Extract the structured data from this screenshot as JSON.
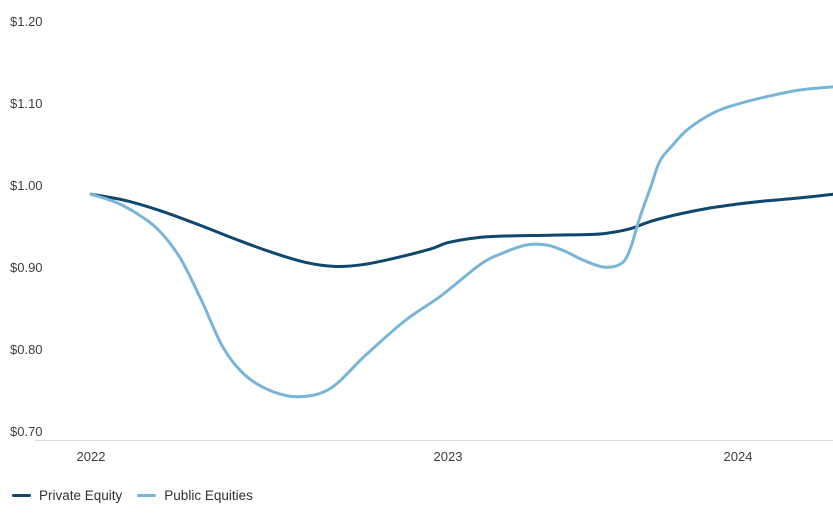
{
  "chart_data": {
    "type": "line",
    "title": "",
    "xlabel": "",
    "ylabel": "",
    "currency_format": "dollars",
    "grid": "off",
    "legend_position": "bottom-left",
    "xlim": [
      2022.0,
      2024.33
    ],
    "ylim": [
      0.7,
      1.2
    ],
    "x_ticks": [
      {
        "label": "2022",
        "year": 2022
      },
      {
        "label": "2023",
        "year": 2023
      },
      {
        "label": "2024",
        "year": 2024
      }
    ],
    "y_ticks": [
      {
        "label": "$1.20",
        "value": 1.2
      },
      {
        "label": "$1.10",
        "value": 1.1
      },
      {
        "label": "$1.00",
        "value": 1.0
      },
      {
        "label": "$0.90",
        "value": 0.9
      },
      {
        "label": "$0.80",
        "value": 0.8
      },
      {
        "label": "$0.70",
        "value": 0.7
      }
    ],
    "series": [
      {
        "name": "Private Equity",
        "color": "#0e486e",
        "points": [
          [
            2022.0,
            0.99
          ],
          [
            2022.1,
            0.982
          ],
          [
            2022.2,
            0.969
          ],
          [
            2022.3,
            0.953
          ],
          [
            2022.4,
            0.936
          ],
          [
            2022.5,
            0.92
          ],
          [
            2022.6,
            0.907
          ],
          [
            2022.68,
            0.902
          ],
          [
            2022.76,
            0.904
          ],
          [
            2022.85,
            0.912
          ],
          [
            2022.95,
            0.923
          ],
          [
            2023.0,
            0.931
          ],
          [
            2023.1,
            0.937
          ],
          [
            2023.2,
            0.939
          ],
          [
            2023.35,
            0.94
          ],
          [
            2023.5,
            0.941
          ],
          [
            2023.56,
            0.943
          ],
          [
            2023.63,
            0.948
          ],
          [
            2023.7,
            0.957
          ],
          [
            2023.8,
            0.966
          ],
          [
            2023.9,
            0.973
          ],
          [
            2024.0,
            0.978
          ],
          [
            2024.1,
            0.982
          ],
          [
            2024.2,
            0.985
          ],
          [
            2024.33,
            0.99
          ]
        ]
      },
      {
        "name": "Public Equities",
        "color": "#79b5d8",
        "points": [
          [
            2022.0,
            0.99
          ],
          [
            2022.07,
            0.98
          ],
          [
            2022.13,
            0.966
          ],
          [
            2022.19,
            0.946
          ],
          [
            2022.25,
            0.912
          ],
          [
            2022.31,
            0.86
          ],
          [
            2022.37,
            0.803
          ],
          [
            2022.43,
            0.77
          ],
          [
            2022.5,
            0.751
          ],
          [
            2022.58,
            0.743
          ],
          [
            2022.67,
            0.753
          ],
          [
            2022.77,
            0.794
          ],
          [
            2022.88,
            0.836
          ],
          [
            2022.98,
            0.866
          ],
          [
            2023.11,
            0.904
          ],
          [
            2023.18,
            0.917
          ],
          [
            2023.27,
            0.928
          ],
          [
            2023.34,
            0.928
          ],
          [
            2023.4,
            0.921
          ],
          [
            2023.47,
            0.909
          ],
          [
            2023.54,
            0.901
          ],
          [
            2023.6,
            0.906
          ],
          [
            2023.63,
            0.925
          ],
          [
            2023.66,
            0.96
          ],
          [
            2023.7,
            1.0
          ],
          [
            2023.73,
            1.03
          ],
          [
            2023.77,
            1.048
          ],
          [
            2023.83,
            1.07
          ],
          [
            2023.92,
            1.09
          ],
          [
            2024.0,
            1.1
          ],
          [
            2024.1,
            1.109
          ],
          [
            2024.21,
            1.117
          ],
          [
            2024.33,
            1.121
          ]
        ]
      }
    ],
    "colors": {
      "background": "#ffffff",
      "axis_line": "#dcdcdc",
      "tick_text": "#3b3e42",
      "legend_text": "#2d3237"
    }
  },
  "legend": {
    "items": [
      {
        "label": "Private Equity"
      },
      {
        "label": "Public Equities"
      }
    ]
  }
}
